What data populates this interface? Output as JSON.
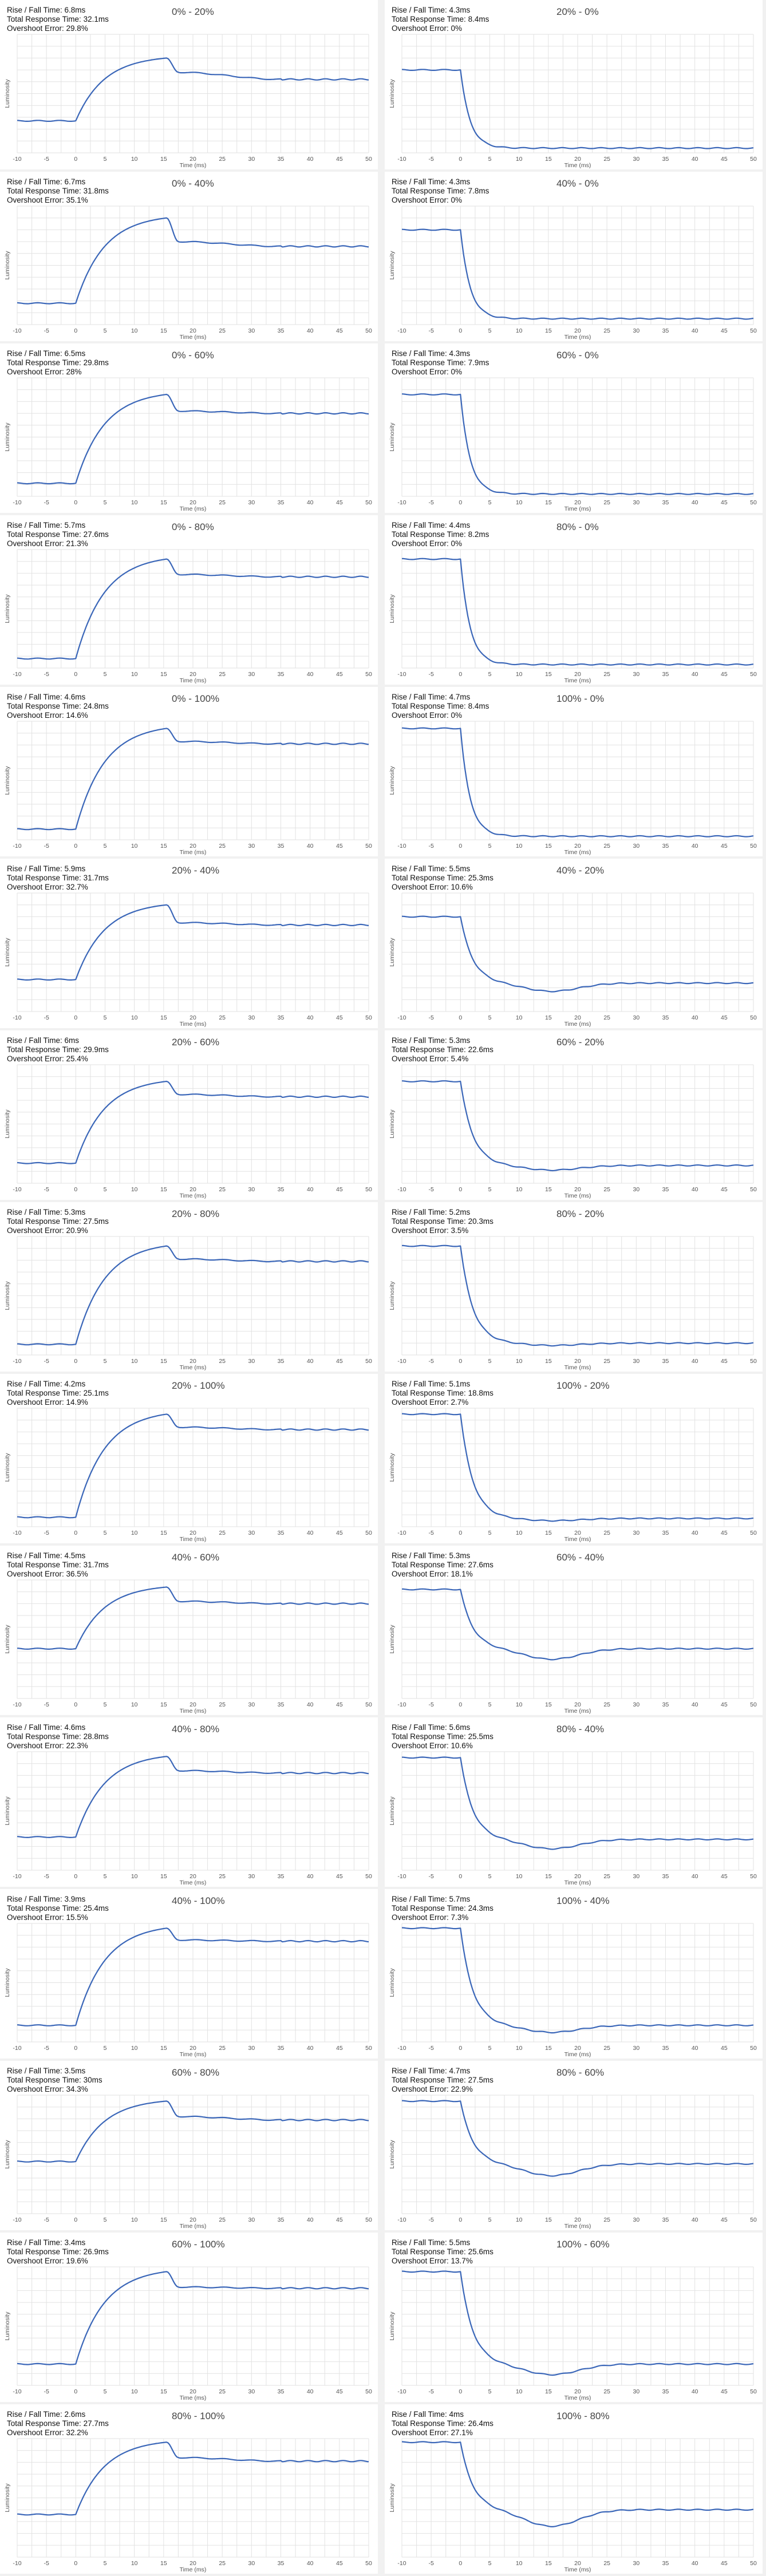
{
  "common": {
    "xlabel": "Time (ms)",
    "ylabel": "Luminosity",
    "xticks": [
      -10,
      -5,
      0,
      5,
      10,
      15,
      20,
      25,
      30,
      35,
      40,
      45,
      50
    ]
  },
  "labels": {
    "rf": "Rise / Fall Time: ",
    "trt": "Total Response Time: ",
    "oe": "Overshoot Error: "
  },
  "colors": {
    "line": "#3a66b8",
    "grid": "#e2e2e2",
    "panel": "#ffffff",
    "background": "#f1f1f1"
  },
  "chart_data": [
    {
      "type": "line",
      "title": "0% - 20%",
      "rise_fall": "6.8ms",
      "total": "32.1ms",
      "overshoot": "29.8%",
      "direction": "rise",
      "start": 0.27,
      "target": 0.62,
      "peak": 0.8,
      "t_end": 15.5,
      "dip": 0.68,
      "settle": 0.62
    },
    {
      "type": "line",
      "title": "20% - 0%",
      "rise_fall": "4.3ms",
      "total": "8.4ms",
      "overshoot": "0%",
      "direction": "fall",
      "start": 0.7,
      "target": 0.04,
      "peak": 0.04,
      "t_end": 4.3,
      "dip": 0.04,
      "settle": 0.04
    },
    {
      "type": "line",
      "title": "0% - 40%",
      "rise_fall": "6.7ms",
      "total": "31.8ms",
      "overshoot": "35.1%",
      "direction": "rise",
      "start": 0.18,
      "target": 0.66,
      "peak": 0.9,
      "t_end": 15.5,
      "dip": 0.7,
      "settle": 0.66
    },
    {
      "type": "line",
      "title": "40% - 0%",
      "rise_fall": "4.3ms",
      "total": "7.8ms",
      "overshoot": "0%",
      "direction": "fall",
      "start": 0.8,
      "target": 0.05,
      "peak": 0.05,
      "t_end": 4.3,
      "dip": 0.05,
      "settle": 0.05
    },
    {
      "type": "line",
      "title": "0% - 60%",
      "rise_fall": "6.5ms",
      "total": "29.8ms",
      "overshoot": "28%",
      "direction": "rise",
      "start": 0.11,
      "target": 0.7,
      "peak": 0.86,
      "t_end": 15.5,
      "dip": 0.72,
      "settle": 0.7
    },
    {
      "type": "line",
      "title": "60% - 0%",
      "rise_fall": "4.3ms",
      "total": "7.9ms",
      "overshoot": "0%",
      "direction": "fall",
      "start": 0.86,
      "target": 0.02,
      "peak": 0.02,
      "t_end": 4.3,
      "dip": 0.02,
      "settle": 0.02
    },
    {
      "type": "line",
      "title": "0% - 80%",
      "rise_fall": "5.7ms",
      "total": "27.6ms",
      "overshoot": "21.3%",
      "direction": "rise",
      "start": 0.08,
      "target": 0.78,
      "peak": 0.92,
      "t_end": 15.5,
      "dip": 0.79,
      "settle": 0.77
    },
    {
      "type": "line",
      "title": "80% - 0%",
      "rise_fall": "4.4ms",
      "total": "8.2ms",
      "overshoot": "0%",
      "direction": "fall",
      "start": 0.92,
      "target": 0.03,
      "peak": 0.03,
      "t_end": 4.4,
      "dip": 0.03,
      "settle": 0.03
    },
    {
      "type": "line",
      "title": "0% - 100%",
      "rise_fall": "4.6ms",
      "total": "24.8ms",
      "overshoot": "14.6%",
      "direction": "rise",
      "start": 0.09,
      "target": 0.82,
      "peak": 0.94,
      "t_end": 15.5,
      "dip": 0.83,
      "settle": 0.81
    },
    {
      "type": "line",
      "title": "100% - 0%",
      "rise_fall": "4.7ms",
      "total": "8.4ms",
      "overshoot": "0%",
      "direction": "fall",
      "start": 0.94,
      "target": 0.03,
      "peak": 0.03,
      "t_end": 4.7,
      "dip": 0.03,
      "settle": 0.03
    },
    {
      "type": "line",
      "title": "20% - 40%",
      "rise_fall": "5.9ms",
      "total": "31.7ms",
      "overshoot": "32.7%",
      "direction": "rise",
      "start": 0.27,
      "target": 0.73,
      "peak": 0.9,
      "t_end": 15.5,
      "dip": 0.75,
      "settle": 0.73
    },
    {
      "type": "line",
      "title": "40% - 20%",
      "rise_fall": "5.5ms",
      "total": "25.3ms",
      "overshoot": "10.6%",
      "direction": "fall",
      "start": 0.8,
      "target": 0.24,
      "peak": 0.17,
      "t_end": 16,
      "dip": 0.22,
      "settle": 0.24
    },
    {
      "type": "line",
      "title": "20% - 60%",
      "rise_fall": "6ms",
      "total": "29.9ms",
      "overshoot": "25.4%",
      "direction": "rise",
      "start": 0.17,
      "target": 0.74,
      "peak": 0.86,
      "t_end": 15.5,
      "dip": 0.75,
      "settle": 0.73
    },
    {
      "type": "line",
      "title": "60% - 20%",
      "rise_fall": "5.3ms",
      "total": "22.6ms",
      "overshoot": "5.4%",
      "direction": "fall",
      "start": 0.86,
      "target": 0.15,
      "peak": 0.11,
      "t_end": 16,
      "dip": 0.14,
      "settle": 0.15
    },
    {
      "type": "line",
      "title": "20% - 80%",
      "rise_fall": "5.3ms",
      "total": "27.5ms",
      "overshoot": "20.9%",
      "direction": "rise",
      "start": 0.09,
      "target": 0.8,
      "peak": 0.92,
      "t_end": 15.5,
      "dip": 0.81,
      "settle": 0.79
    },
    {
      "type": "line",
      "title": "80% - 20%",
      "rise_fall": "5.2ms",
      "total": "20.3ms",
      "overshoot": "3.5%",
      "direction": "fall",
      "start": 0.92,
      "target": 0.1,
      "peak": 0.08,
      "t_end": 16,
      "dip": 0.1,
      "settle": 0.1
    },
    {
      "type": "line",
      "title": "20% - 100%",
      "rise_fall": "4.2ms",
      "total": "25.1ms",
      "overshoot": "14.9%",
      "direction": "rise",
      "start": 0.08,
      "target": 0.83,
      "peak": 0.95,
      "t_end": 15.5,
      "dip": 0.84,
      "settle": 0.82
    },
    {
      "type": "line",
      "title": "100% - 20%",
      "rise_fall": "5.1ms",
      "total": "18.8ms",
      "overshoot": "2.7%",
      "direction": "fall",
      "start": 0.95,
      "target": 0.07,
      "peak": 0.05,
      "t_end": 16,
      "dip": 0.07,
      "settle": 0.07
    },
    {
      "type": "line",
      "title": "40% - 60%",
      "rise_fall": "4.5ms",
      "total": "31.7ms",
      "overshoot": "36.5%",
      "direction": "rise",
      "start": 0.42,
      "target": 0.8,
      "peak": 0.94,
      "t_end": 15.5,
      "dip": 0.82,
      "settle": 0.8
    },
    {
      "type": "line",
      "title": "60% - 40%",
      "rise_fall": "5.3ms",
      "total": "27.6ms",
      "overshoot": "18.1%",
      "direction": "fall",
      "start": 0.92,
      "target": 0.42,
      "peak": 0.33,
      "t_end": 16,
      "dip": 0.41,
      "settle": 0.43
    },
    {
      "type": "line",
      "title": "40% - 80%",
      "rise_fall": "4.6ms",
      "total": "28.8ms",
      "overshoot": "22.3%",
      "direction": "rise",
      "start": 0.28,
      "target": 0.83,
      "peak": 0.96,
      "t_end": 15.5,
      "dip": 0.84,
      "settle": 0.82
    },
    {
      "type": "line",
      "title": "80% - 40%",
      "rise_fall": "5.6ms",
      "total": "25.5ms",
      "overshoot": "10.6%",
      "direction": "fall",
      "start": 0.95,
      "target": 0.26,
      "peak": 0.18,
      "t_end": 16,
      "dip": 0.25,
      "settle": 0.26
    },
    {
      "type": "line",
      "title": "40% - 100%",
      "rise_fall": "3.9ms",
      "total": "25.4ms",
      "overshoot": "15.5%",
      "direction": "rise",
      "start": 0.14,
      "target": 0.86,
      "peak": 0.96,
      "t_end": 15.5,
      "dip": 0.86,
      "settle": 0.85
    },
    {
      "type": "line",
      "title": "100% - 40%",
      "rise_fall": "5.7ms",
      "total": "24.3ms",
      "overshoot": "7.3%",
      "direction": "fall",
      "start": 0.96,
      "target": 0.14,
      "peak": 0.08,
      "t_end": 16,
      "dip": 0.13,
      "settle": 0.14
    },
    {
      "type": "line",
      "title": "60% - 80%",
      "rise_fall": "3.5ms",
      "total": "30ms",
      "overshoot": "34.3%",
      "direction": "rise",
      "start": 0.44,
      "target": 0.8,
      "peak": 0.95,
      "t_end": 15.5,
      "dip": 0.82,
      "settle": 0.79
    },
    {
      "type": "line",
      "title": "80% - 60%",
      "rise_fall": "4.7ms",
      "total": "27.5ms",
      "overshoot": "22.9%",
      "direction": "fall",
      "start": 0.95,
      "target": 0.42,
      "peak": 0.32,
      "t_end": 16,
      "dip": 0.4,
      "settle": 0.42
    },
    {
      "type": "line",
      "title": "60% - 100%",
      "rise_fall": "3.4ms",
      "total": "26.9ms",
      "overshoot": "19.6%",
      "direction": "rise",
      "start": 0.18,
      "target": 0.82,
      "peak": 0.96,
      "t_end": 15.5,
      "dip": 0.83,
      "settle": 0.82
    },
    {
      "type": "line",
      "title": "100% - 60%",
      "rise_fall": "5.5ms",
      "total": "25.6ms",
      "overshoot": "13.7%",
      "direction": "fall",
      "start": 0.96,
      "target": 0.18,
      "peak": 0.09,
      "t_end": 16,
      "dip": 0.17,
      "settle": 0.18
    },
    {
      "type": "line",
      "title": "80% - 100%",
      "rise_fall": "2.6ms",
      "total": "27.7ms",
      "overshoot": "32.2%",
      "direction": "rise",
      "start": 0.36,
      "target": 0.82,
      "peak": 0.97,
      "t_end": 15.5,
      "dip": 0.84,
      "settle": 0.81
    },
    {
      "type": "line",
      "title": "100% - 80%",
      "rise_fall": "4ms",
      "total": "26.4ms",
      "overshoot": "27.1%",
      "direction": "fall",
      "start": 0.97,
      "target": 0.4,
      "peak": 0.26,
      "t_end": 16,
      "dip": 0.38,
      "settle": 0.4
    }
  ]
}
